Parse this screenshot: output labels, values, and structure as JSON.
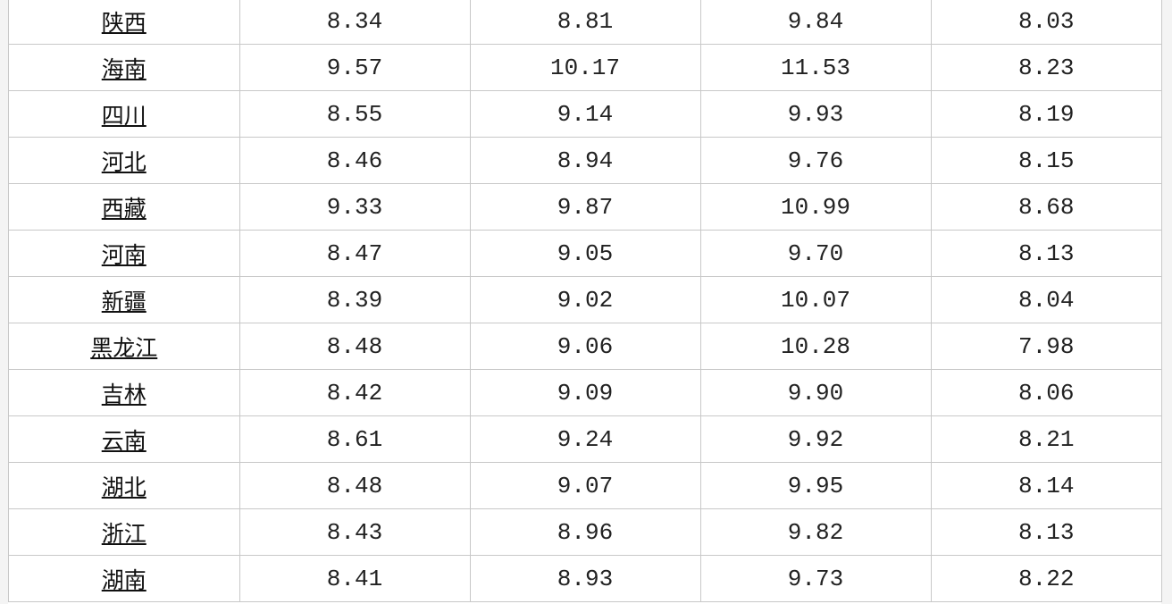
{
  "rows": [
    {
      "region": "陕西",
      "values": [
        "8.34",
        "8.81",
        "9.84",
        "8.03"
      ]
    },
    {
      "region": "海南",
      "values": [
        "9.57",
        "10.17",
        "11.53",
        "8.23"
      ]
    },
    {
      "region": "四川",
      "values": [
        "8.55",
        "9.14",
        "9.93",
        "8.19"
      ]
    },
    {
      "region": "河北",
      "values": [
        "8.46",
        "8.94",
        "9.76",
        "8.15"
      ]
    },
    {
      "region": "西藏",
      "values": [
        "9.33",
        "9.87",
        "10.99",
        "8.68"
      ]
    },
    {
      "region": "河南",
      "values": [
        "8.47",
        "9.05",
        "9.70",
        "8.13"
      ]
    },
    {
      "region": "新疆",
      "values": [
        "8.39",
        "9.02",
        "10.07",
        "8.04"
      ]
    },
    {
      "region": "黑龙江",
      "values": [
        "8.48",
        "9.06",
        "10.28",
        "7.98"
      ]
    },
    {
      "region": "吉林",
      "values": [
        "8.42",
        "9.09",
        "9.90",
        "8.06"
      ]
    },
    {
      "region": "云南",
      "values": [
        "8.61",
        "9.24",
        "9.92",
        "8.21"
      ]
    },
    {
      "region": "湖北",
      "values": [
        "8.48",
        "9.07",
        "9.95",
        "8.14"
      ]
    },
    {
      "region": "浙江",
      "values": [
        "8.43",
        "8.96",
        "9.82",
        "8.13"
      ]
    },
    {
      "region": "湖南",
      "values": [
        "8.41",
        "8.93",
        "9.73",
        "8.22"
      ]
    }
  ]
}
